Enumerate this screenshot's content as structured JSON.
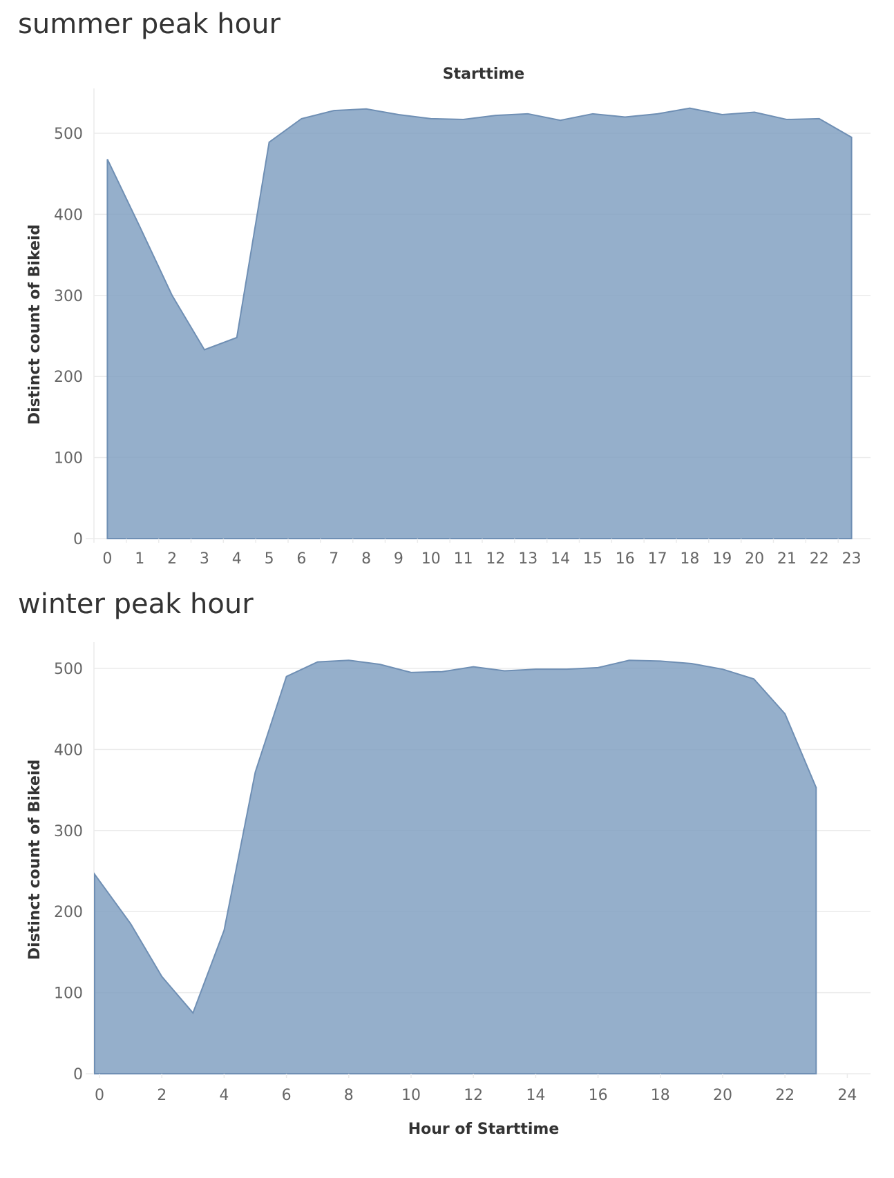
{
  "charts": {
    "summer": {
      "title": "summer peak hour"
    },
    "winter": {
      "title": "winter peak hour"
    }
  },
  "colors": {
    "area": "#7e9dbf",
    "grid": "#ebebeb",
    "text": "#333333",
    "tick": "#666666"
  },
  "chart_data": [
    {
      "type": "area",
      "title": "summer peak hour",
      "column_header": "Starttime",
      "xlabel": "",
      "ylabel": "Distinct count of Bikeid",
      "categories": [
        "0",
        "1",
        "2",
        "3",
        "4",
        "5",
        "6",
        "7",
        "8",
        "9",
        "10",
        "11",
        "12",
        "13",
        "14",
        "15",
        "16",
        "17",
        "18",
        "19",
        "20",
        "21",
        "22",
        "23"
      ],
      "values": [
        468,
        385,
        300,
        233,
        248,
        489,
        518,
        528,
        530,
        523,
        518,
        517,
        522,
        524,
        516,
        524,
        520,
        524,
        531,
        523,
        526,
        517,
        518,
        495
      ],
      "ylim": [
        0,
        560
      ],
      "yticks": [
        0,
        100,
        200,
        300,
        400,
        500
      ],
      "grid": true
    },
    {
      "type": "area",
      "title": "winter peak hour",
      "xlabel": "Hour of Starttime",
      "ylabel": "Distinct count of Bikeid",
      "x": [
        0,
        1,
        2,
        3,
        4,
        5,
        6,
        7,
        8,
        9,
        10,
        11,
        12,
        13,
        14,
        15,
        16,
        17,
        18,
        19,
        20,
        21,
        22,
        23
      ],
      "values": [
        246,
        185,
        120,
        75,
        177,
        372,
        490,
        508,
        510,
        505,
        495,
        496,
        502,
        497,
        499,
        499,
        501,
        510,
        509,
        506,
        499,
        487,
        444,
        353
      ],
      "xlim": [
        -0.25,
        25
      ],
      "xticks": [
        0,
        2,
        4,
        6,
        8,
        10,
        12,
        14,
        16,
        18,
        20,
        22,
        24
      ],
      "ylim": [
        0,
        550
      ],
      "yticks": [
        0,
        100,
        200,
        300,
        400,
        500
      ],
      "grid": true
    }
  ]
}
